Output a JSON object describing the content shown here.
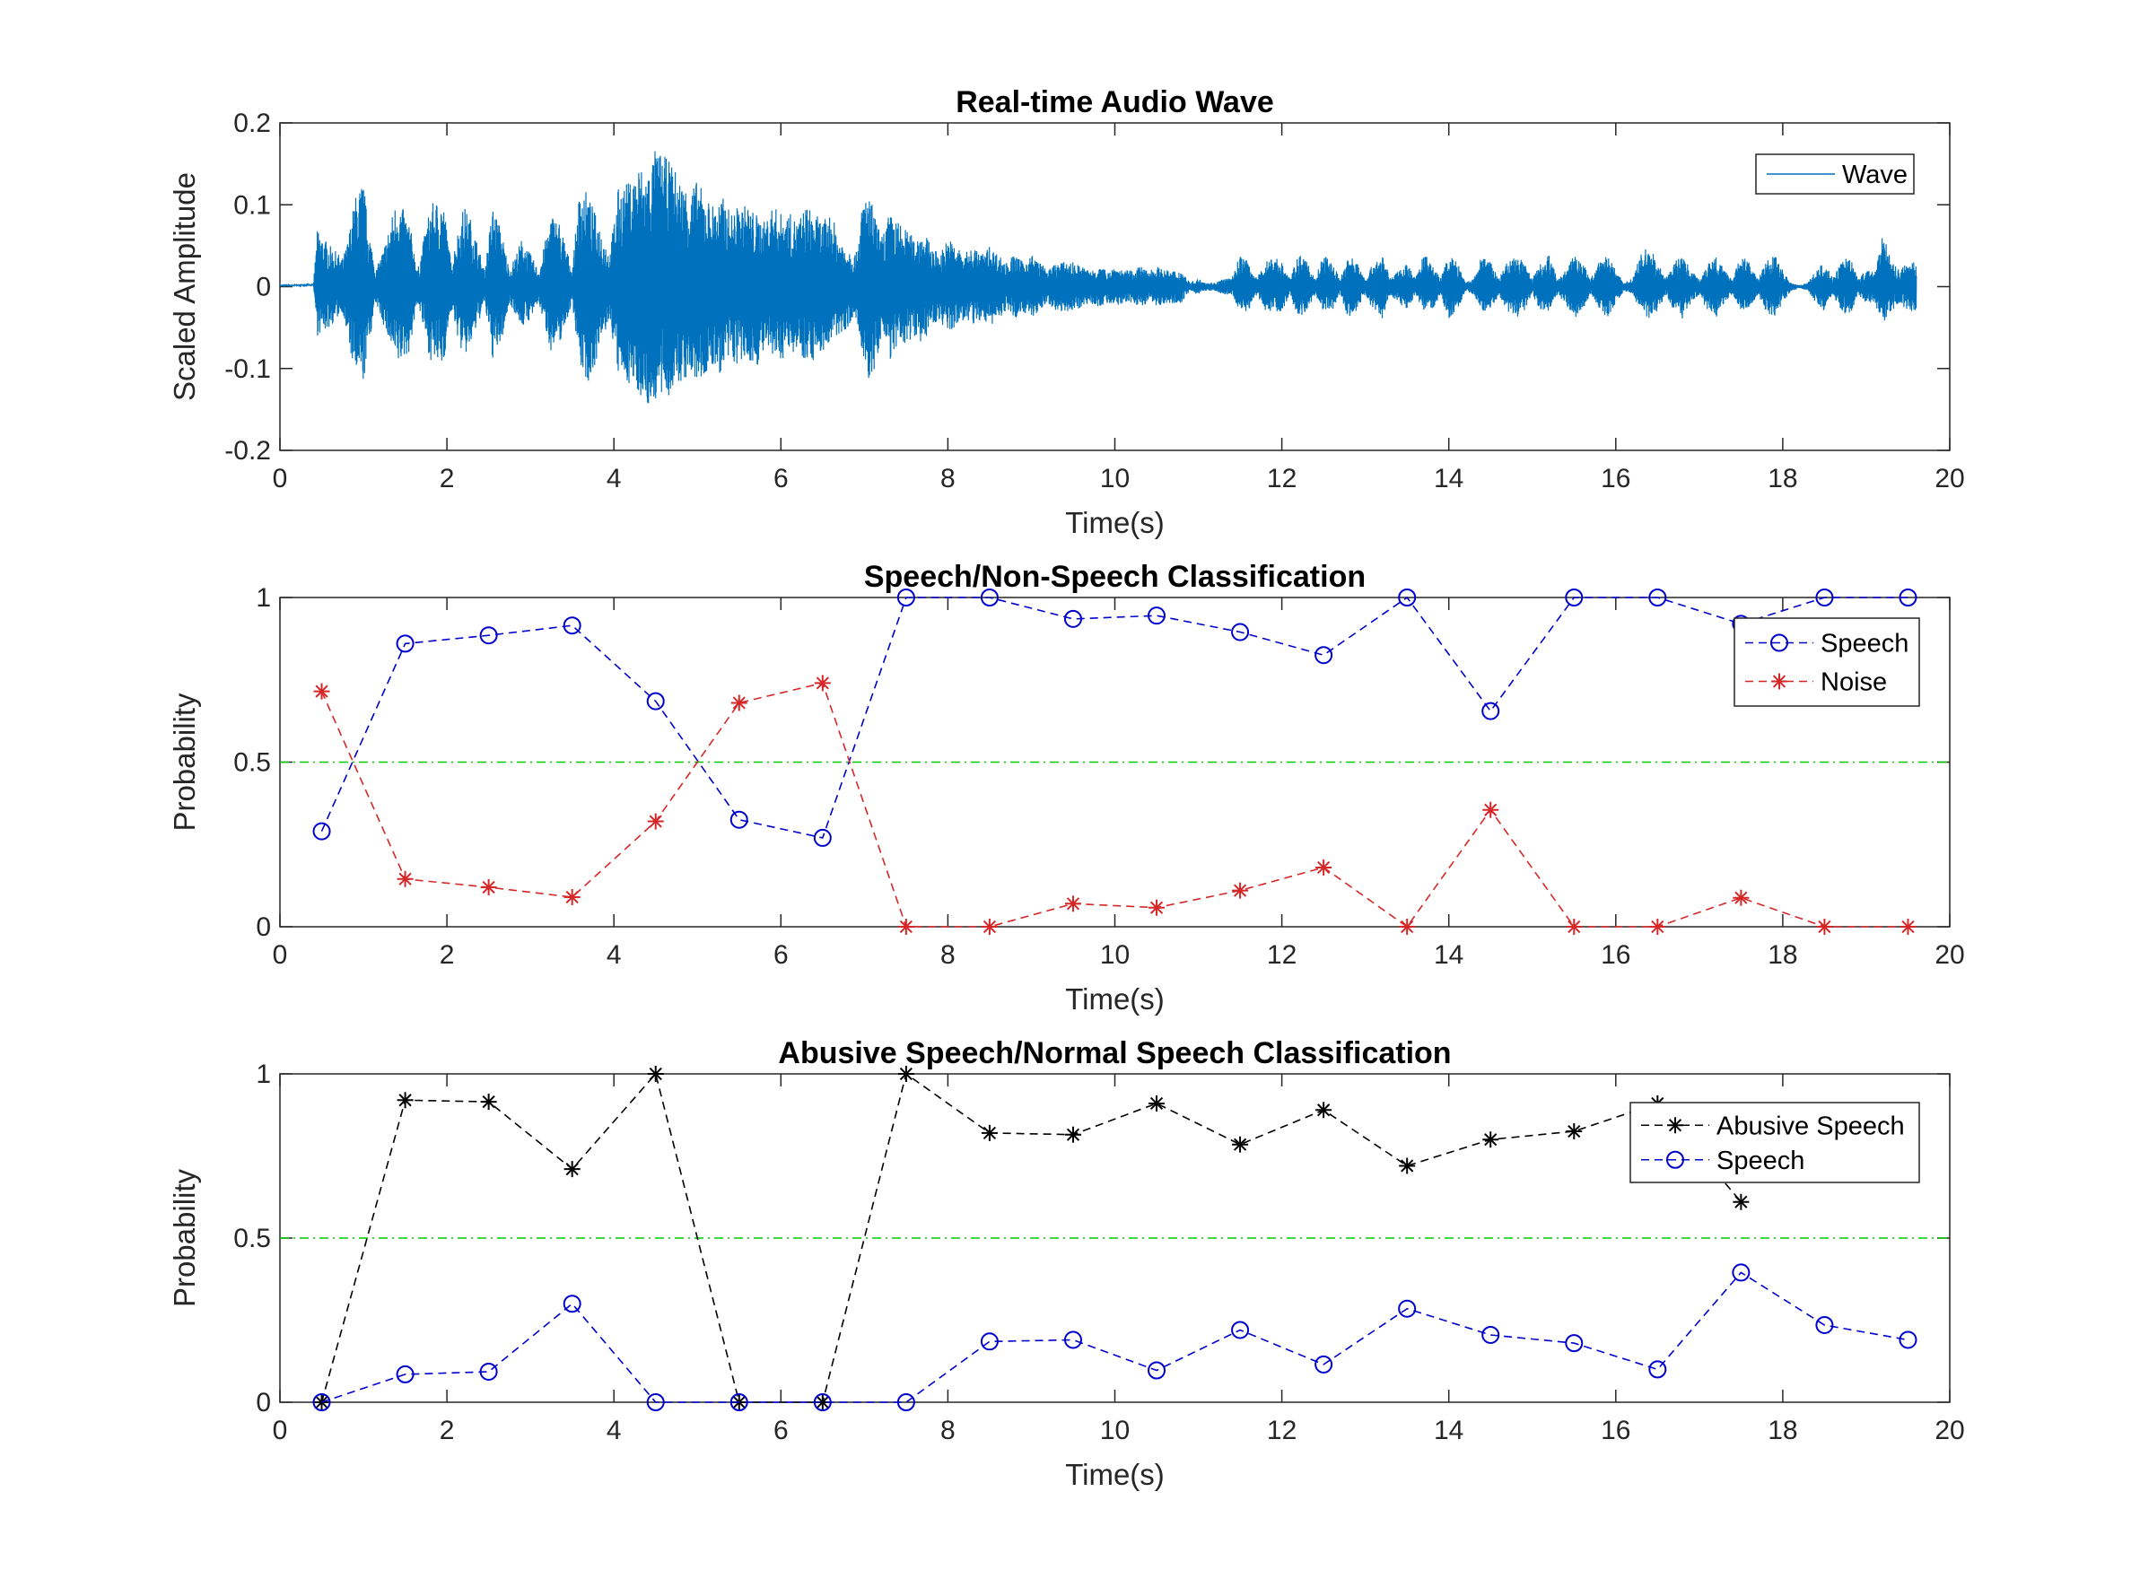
{
  "chart_data": [
    {
      "type": "line",
      "title": "Real-time Audio Wave",
      "xlabel": "Time(s)",
      "ylabel": "Scaled Amplitude",
      "xlim": [
        0,
        20
      ],
      "ylim": [
        -0.2,
        0.2
      ],
      "xticks": [
        "0",
        "2",
        "4",
        "6",
        "8",
        "10",
        "12",
        "14",
        "16",
        "18",
        "20"
      ],
      "yticks": [
        "-0.2",
        "-0.1",
        "0",
        "0.1",
        "0.2"
      ],
      "legend_position": "top-right",
      "series": [
        {
          "name": "Wave",
          "color": "#0072BD",
          "style": "solid",
          "x": [
            0.0,
            0.4,
            0.45,
            0.6,
            0.75,
            0.8,
            0.9,
            1.0,
            1.05,
            1.15,
            1.25,
            1.4,
            1.55,
            1.65,
            1.8,
            1.95,
            2.05,
            2.2,
            2.3,
            2.45,
            2.55,
            2.65,
            2.75,
            2.9,
            3.0,
            3.1,
            3.25,
            3.35,
            3.5,
            3.6,
            3.7,
            3.85,
            3.95,
            4.05,
            4.2,
            4.3,
            4.4,
            4.5,
            4.6,
            4.7,
            4.8,
            4.9,
            5.0,
            5.1,
            5.2,
            5.3,
            5.4,
            5.5,
            5.6,
            5.7,
            5.8,
            5.9,
            6.0,
            6.1,
            6.2,
            6.3,
            6.4,
            6.5,
            6.6,
            6.7,
            6.8,
            6.9,
            7.0,
            7.1,
            7.2,
            7.3,
            7.4,
            7.5,
            7.6,
            7.7,
            7.8,
            7.9,
            8.0,
            8.1,
            8.2,
            8.3,
            8.4,
            8.5,
            8.6,
            8.7,
            8.8,
            8.9,
            9.0,
            9.1,
            9.2,
            9.3,
            9.4,
            9.5,
            9.6,
            9.7,
            9.8,
            9.9,
            10.0,
            10.1,
            10.2,
            10.3,
            10.4,
            10.5,
            10.6,
            10.7,
            10.8,
            10.9,
            11.0,
            11.1,
            11.2,
            11.3,
            11.4,
            11.5,
            11.6,
            11.7,
            11.8,
            11.9,
            12.0,
            12.1,
            12.2,
            12.3,
            12.4,
            12.5,
            12.6,
            12.7,
            12.8,
            12.9,
            13.0,
            13.1,
            13.2,
            13.3,
            13.4,
            13.5,
            13.6,
            13.7,
            13.8,
            13.9,
            14.0,
            14.1,
            14.2,
            14.3,
            14.4,
            14.5,
            14.6,
            14.7,
            14.8,
            14.9,
            15.0,
            15.1,
            15.2,
            15.3,
            15.4,
            15.5,
            15.6,
            15.7,
            15.8,
            15.9,
            16.0,
            16.1,
            16.2,
            16.3,
            16.4,
            16.5,
            16.6,
            16.7,
            16.8,
            16.9,
            17.0,
            17.1,
            17.2,
            17.3,
            17.4,
            17.5,
            17.6,
            17.7,
            17.8,
            17.9,
            18.0,
            18.1,
            18.2,
            18.3,
            18.4,
            18.5,
            18.6,
            18.7,
            18.8,
            18.9,
            19.0,
            19.1,
            19.2,
            19.3,
            19.4,
            19.5,
            19.6,
            19.7,
            19.8,
            19.9,
            20.0
          ],
          "env_pos": [
            0.002,
            0.003,
            0.07,
            0.05,
            0.035,
            0.05,
            0.11,
            0.13,
            0.08,
            0.02,
            0.05,
            0.11,
            0.08,
            0.02,
            0.1,
            0.11,
            0.03,
            0.1,
            0.08,
            0.02,
            0.1,
            0.07,
            0.02,
            0.06,
            0.04,
            0.02,
            0.09,
            0.08,
            0.02,
            0.13,
            0.11,
            0.07,
            0.04,
            0.12,
            0.13,
            0.15,
            0.14,
            0.17,
            0.16,
            0.15,
            0.13,
            0.12,
            0.13,
            0.11,
            0.1,
            0.11,
            0.09,
            0.1,
            0.1,
            0.09,
            0.08,
            0.1,
            0.09,
            0.09,
            0.08,
            0.1,
            0.09,
            0.08,
            0.09,
            0.06,
            0.05,
            0.04,
            0.12,
            0.1,
            0.06,
            0.09,
            0.08,
            0.07,
            0.06,
            0.07,
            0.05,
            0.04,
            0.06,
            0.05,
            0.04,
            0.05,
            0.04,
            0.05,
            0.04,
            0.03,
            0.04,
            0.03,
            0.04,
            0.03,
            0.02,
            0.03,
            0.03,
            0.03,
            0.025,
            0.02,
            0.025,
            0.02,
            0.025,
            0.02,
            0.02,
            0.025,
            0.02,
            0.025,
            0.02,
            0.02,
            0.02,
            0.005,
            0.01,
            0.005,
            0.005,
            0.01,
            0.01,
            0.04,
            0.03,
            0.01,
            0.03,
            0.04,
            0.03,
            0.01,
            0.04,
            0.03,
            0.01,
            0.04,
            0.03,
            0.01,
            0.04,
            0.03,
            0.01,
            0.03,
            0.04,
            0.01,
            0.02,
            0.03,
            0.01,
            0.04,
            0.03,
            0.01,
            0.04,
            0.03,
            0.005,
            0.01,
            0.04,
            0.03,
            0.01,
            0.03,
            0.04,
            0.03,
            0.01,
            0.03,
            0.04,
            0.01,
            0.02,
            0.04,
            0.03,
            0.01,
            0.03,
            0.04,
            0.02,
            0.005,
            0.01,
            0.04,
            0.05,
            0.03,
            0.01,
            0.03,
            0.04,
            0.02,
            0.01,
            0.03,
            0.04,
            0.02,
            0.01,
            0.04,
            0.03,
            0.01,
            0.03,
            0.04,
            0.02,
            0.005,
            0.002,
            0.005,
            0.02,
            0.03,
            0.01,
            0.03,
            0.04,
            0.01,
            0.02,
            0.02,
            0.07,
            0.03,
            0.02,
            0.03,
            0.03
          ],
          "env_neg": [
            0.002,
            0.003,
            -0.06,
            -0.05,
            -0.03,
            -0.06,
            -0.11,
            -0.12,
            -0.08,
            -0.02,
            -0.05,
            -0.1,
            -0.08,
            -0.02,
            -0.09,
            -0.1,
            -0.03,
            -0.09,
            -0.07,
            -0.02,
            -0.09,
            -0.07,
            -0.02,
            -0.05,
            -0.04,
            -0.02,
            -0.08,
            -0.07,
            -0.02,
            -0.1,
            -0.12,
            -0.07,
            -0.04,
            -0.11,
            -0.12,
            -0.13,
            -0.15,
            -0.14,
            -0.14,
            -0.13,
            -0.12,
            -0.11,
            -0.12,
            -0.11,
            -0.1,
            -0.11,
            -0.09,
            -0.1,
            -0.09,
            -0.1,
            -0.08,
            -0.09,
            -0.09,
            -0.08,
            -0.08,
            -0.09,
            -0.09,
            -0.08,
            -0.07,
            -0.06,
            -0.05,
            -0.04,
            -0.11,
            -0.12,
            -0.06,
            -0.09,
            -0.08,
            -0.07,
            -0.06,
            -0.07,
            -0.05,
            -0.04,
            -0.06,
            -0.05,
            -0.04,
            -0.05,
            -0.04,
            -0.05,
            -0.04,
            -0.03,
            -0.04,
            -0.03,
            -0.04,
            -0.03,
            -0.02,
            -0.03,
            -0.03,
            -0.03,
            -0.025,
            -0.02,
            -0.025,
            -0.02,
            -0.025,
            -0.02,
            -0.02,
            -0.025,
            -0.02,
            -0.025,
            -0.02,
            -0.02,
            -0.02,
            -0.005,
            -0.01,
            -0.005,
            -0.005,
            -0.01,
            -0.01,
            -0.03,
            -0.03,
            -0.01,
            -0.03,
            -0.03,
            -0.03,
            -0.01,
            -0.04,
            -0.03,
            -0.01,
            -0.03,
            -0.03,
            -0.01,
            -0.04,
            -0.03,
            -0.01,
            -0.03,
            -0.04,
            -0.01,
            -0.02,
            -0.03,
            -0.01,
            -0.03,
            -0.03,
            -0.01,
            -0.04,
            -0.03,
            -0.005,
            -0.01,
            -0.03,
            -0.03,
            -0.01,
            -0.03,
            -0.04,
            -0.03,
            -0.01,
            -0.03,
            -0.03,
            -0.01,
            -0.02,
            -0.04,
            -0.03,
            -0.01,
            -0.03,
            -0.04,
            -0.02,
            -0.005,
            -0.01,
            -0.03,
            -0.04,
            -0.03,
            -0.01,
            -0.03,
            -0.04,
            -0.02,
            -0.01,
            -0.03,
            -0.04,
            -0.02,
            -0.01,
            -0.03,
            -0.03,
            -0.01,
            -0.03,
            -0.04,
            -0.02,
            -0.005,
            -0.002,
            -0.005,
            -0.02,
            -0.03,
            -0.01,
            -0.03,
            -0.04,
            -0.01,
            -0.02,
            -0.02,
            -0.05,
            -0.03,
            -0.02,
            -0.03,
            -0.03
          ]
        }
      ]
    },
    {
      "type": "line",
      "title": "Speech/Non-Speech Classification",
      "xlabel": "Time(s)",
      "ylabel": "Probability",
      "xlim": [
        0,
        20
      ],
      "ylim": [
        0,
        1
      ],
      "xticks": [
        "0",
        "2",
        "4",
        "6",
        "8",
        "10",
        "12",
        "14",
        "16",
        "18",
        "20"
      ],
      "yticks": [
        "0",
        "0.5",
        "1"
      ],
      "legend_position": "top-right",
      "threshold": 0.5,
      "threshold_color": "#00CC00",
      "x": [
        0.5,
        1.5,
        2.5,
        3.5,
        4.5,
        5.5,
        6.5,
        7.5,
        8.5,
        9.5,
        10.5,
        11.5,
        12.5,
        13.5,
        14.5,
        15.5,
        16.5,
        17.5,
        18.5,
        19.5
      ],
      "series": [
        {
          "name": "Speech",
          "color": "#0000CC",
          "marker": "o",
          "values": [
            0.29,
            0.86,
            0.885,
            0.915,
            0.685,
            0.325,
            0.27,
            1.0,
            1.0,
            0.935,
            0.945,
            0.895,
            0.825,
            1.0,
            0.655,
            1.0,
            1.0,
            0.92,
            1.0,
            1.0
          ]
        },
        {
          "name": "Noise",
          "color": "#D62728",
          "marker": "*",
          "values": [
            0.715,
            0.145,
            0.12,
            0.09,
            0.32,
            0.68,
            0.74,
            0.0,
            0.0,
            0.07,
            0.058,
            0.11,
            0.18,
            0.0,
            0.355,
            0.0,
            0.0,
            0.088,
            0.0,
            0.0
          ]
        }
      ]
    },
    {
      "type": "line",
      "title": "Abusive Speech/Normal Speech Classification",
      "xlabel": "Time(s)",
      "ylabel": "Probability",
      "xlim": [
        0,
        20
      ],
      "ylim": [
        0,
        1
      ],
      "xticks": [
        "0",
        "2",
        "4",
        "6",
        "8",
        "10",
        "12",
        "14",
        "16",
        "18",
        "20"
      ],
      "yticks": [
        "0",
        "0.5",
        "1"
      ],
      "legend_position": "top-right",
      "threshold": 0.5,
      "threshold_color": "#00CC00",
      "x": [
        0.5,
        1.5,
        2.5,
        3.5,
        4.5,
        5.5,
        6.5,
        7.5,
        8.5,
        9.5,
        10.5,
        11.5,
        12.5,
        13.5,
        14.5,
        15.5,
        16.5,
        17.5,
        18.5,
        19.5
      ],
      "series": [
        {
          "name": "Abusive Speech",
          "color": "#000000",
          "marker": "*",
          "values": [
            0.0,
            0.92,
            0.915,
            0.71,
            1.0,
            0.0,
            0.0,
            1.0,
            0.82,
            0.815,
            0.91,
            0.785,
            0.89,
            0.72,
            0.8,
            0.825,
            0.91,
            0.61,
            null,
            null
          ]
        },
        {
          "name": "Speech",
          "color": "#0000CC",
          "marker": "o",
          "values": [
            0.0,
            0.085,
            0.093,
            0.3,
            0.0,
            0.0,
            0.0,
            0.0,
            0.185,
            0.19,
            0.097,
            0.22,
            0.115,
            0.285,
            0.205,
            0.18,
            0.1,
            0.395,
            0.235,
            0.19
          ]
        }
      ]
    }
  ]
}
